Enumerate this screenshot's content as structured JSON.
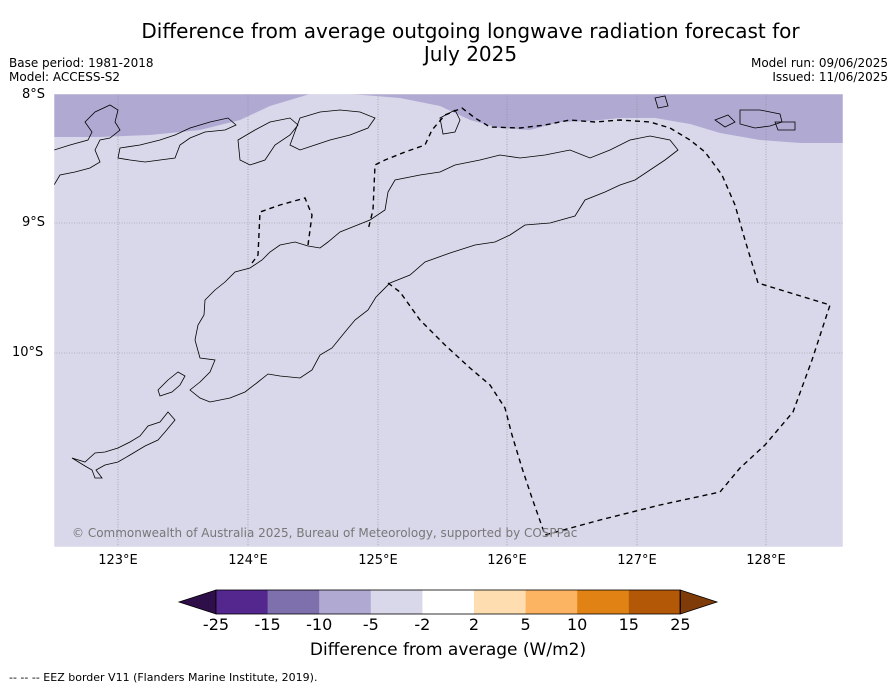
{
  "header": {
    "title_line1": "Difference from average outgoing longwave radiation forecast for",
    "title_line2": "July 2025",
    "base_period": "Base period: 1981-2018",
    "model": "Model: ACCESS-S2",
    "model_run": "Model run: 09/06/2025",
    "issued": "Issued: 11/06/2025"
  },
  "map": {
    "lat_labels": [
      "8°S",
      "9°S",
      "10°S"
    ],
    "lon_labels": [
      "123°E",
      "124°E",
      "125°E",
      "126°E",
      "127°E",
      "128°E"
    ],
    "credit": "© Commonwealth of Australia 2025, Bureau of Meteorology, supported by COSPPac",
    "main_anomaly_color": "#d8d8ea",
    "northern_anomaly_color": "#b0aad3",
    "eez_style": "dashed"
  },
  "colorbar": {
    "title": "Difference from average (W/m2)",
    "tick_labels": [
      "-25",
      "-15",
      "-10",
      "-5",
      "-2",
      "2",
      "5",
      "10",
      "15",
      "25"
    ],
    "colors": [
      "#2e0f4a",
      "#54278f",
      "#7d70ac",
      "#b0aad3",
      "#d8d8ea",
      "#ffffff",
      "#fedeb1",
      "#fdb462",
      "#e08214",
      "#b35806",
      "#7f3b08"
    ]
  },
  "footnote": "-- -- -- EEZ border V11 (Flanders Marine Institute, 2019)."
}
